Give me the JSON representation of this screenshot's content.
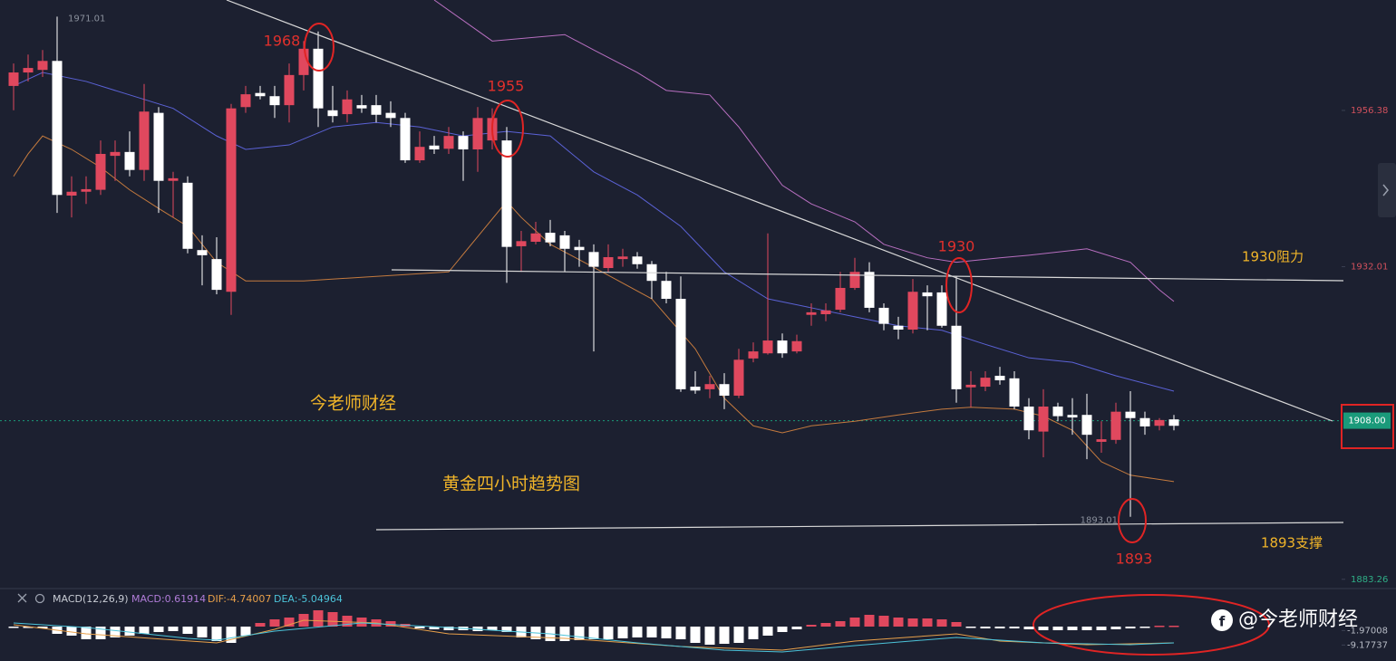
{
  "chart_data": {
    "type": "candlestick",
    "up_color": "#e0485e",
    "down_color": "#ffffff",
    "ylim": [
      1882.1,
      1973.6
    ],
    "yticks": [
      1956.38,
      1932.01,
      1883.26
    ],
    "ytick_colors": [
      "#d0505c",
      "#d0505c",
      "#2fae86"
    ],
    "last_price": {
      "value": 1908,
      "label": "1908.00"
    },
    "high_label": 1971.01,
    "low_label": 1893.01,
    "open": [
      1960.2,
      1962.3,
      1962.7,
      1964.1,
      1943.1,
      1943.7,
      1944.0,
      1949.3,
      1949.9,
      1947.1,
      1956.0,
      1945.4,
      1945.1,
      1934.6,
      1933.2,
      1928.1,
      1956.9,
      1959.1,
      1958.6,
      1957.2,
      1961.9,
      1966.0,
      1956.4,
      1955.8,
      1957.2,
      1957.2,
      1956.0,
      1955.2,
      1948.6,
      1950.9,
      1950.4,
      1952.4,
      1950.3,
      1951.7,
      1951.7,
      1935.2,
      1935.9,
      1937.3,
      1936.9,
      1935.1,
      1934.3,
      1931.8,
      1933.2,
      1933.6,
      1932.4,
      1929.8,
      1927.0,
      1913.3,
      1912.9,
      1913.7,
      1911.9,
      1917.7,
      1918.5,
      1920.5,
      1918.8,
      1924.5,
      1924.6,
      1925.3,
      1928.7,
      1931.2,
      1925.6,
      1922.8,
      1922.2,
      1928.0,
      1928.0,
      1922.8,
      1913.2,
      1913.3,
      1915.0,
      1914.6,
      1910.2,
      1906.3,
      1910.2,
      1908.9,
      1908.9,
      1904.7,
      1905.0,
      1909.4,
      1908.4,
      1907.2,
      1908.2
    ],
    "high": [
      1963.7,
      1965.1,
      1965.8,
      1971.01,
      1946.1,
      1946.1,
      1951.7,
      1951.7,
      1953.1,
      1960.5,
      1956.9,
      1946.8,
      1946.1,
      1936.9,
      1936.6,
      1957.4,
      1960.2,
      1960.2,
      1960.2,
      1963.7,
      1967.2,
      1968.7,
      1960.2,
      1959.5,
      1958.8,
      1958.8,
      1957.8,
      1956.0,
      1953.1,
      1952.4,
      1953.8,
      1953.1,
      1956.9,
      1956.7,
      1953.8,
      1937.6,
      1939.0,
      1939.3,
      1937.6,
      1936.2,
      1935.5,
      1935.5,
      1934.8,
      1934.3,
      1932.9,
      1931.2,
      1930.5,
      1915.7,
      1915.0,
      1915.4,
      1919.2,
      1920.2,
      1937.2,
      1921.6,
      1921.4,
      1926.3,
      1926.3,
      1931.2,
      1933.4,
      1932.7,
      1926.3,
      1924.2,
      1930.1,
      1929.1,
      1929.1,
      1930.5,
      1915.7,
      1915.7,
      1916.4,
      1915.7,
      1911.5,
      1912.9,
      1910.8,
      1911.5,
      1912.2,
      1907.9,
      1910.8,
      1912.6,
      1909.4,
      1908.4,
      1908.9
    ],
    "low": [
      1956.4,
      1960.9,
      1961.6,
      1940.4,
      1939.7,
      1941.8,
      1943.2,
      1945.4,
      1946.1,
      1945.4,
      1940.4,
      1939.7,
      1934.1,
      1929.1,
      1927.7,
      1924.5,
      1956.0,
      1958.1,
      1955.2,
      1954.5,
      1959.5,
      1953.8,
      1954.5,
      1954.5,
      1956.0,
      1954.5,
      1953.8,
      1948.2,
      1948.2,
      1949.6,
      1949.6,
      1945.4,
      1946.8,
      1950.3,
      1929.5,
      1931.2,
      1935.5,
      1935.2,
      1931.2,
      1932.0,
      1918.8,
      1931.2,
      1932.0,
      1931.7,
      1927.0,
      1926.3,
      1912.5,
      1912.2,
      1911.5,
      1909.8,
      1911.5,
      1917.1,
      1918.3,
      1917.8,
      1918.5,
      1922.8,
      1923.5,
      1924.9,
      1928.4,
      1924.9,
      1922.1,
      1920.7,
      1921.6,
      1922.1,
      1922.5,
      1910.8,
      1910.1,
      1912.6,
      1913.6,
      1909.8,
      1905.1,
      1902.3,
      1907.9,
      1905.8,
      1902.0,
      1903.0,
      1904.4,
      1893.01,
      1905.8,
      1906.5,
      1906.5
    ],
    "close": [
      1962.3,
      1963.0,
      1964.1,
      1943.2,
      1943.7,
      1944.1,
      1949.6,
      1949.9,
      1947.1,
      1956.2,
      1945.4,
      1945.8,
      1934.8,
      1933.8,
      1928.4,
      1956.7,
      1958.9,
      1958.6,
      1957.2,
      1961.9,
      1966.0,
      1956.7,
      1955.5,
      1958.1,
      1956.7,
      1955.7,
      1955.2,
      1948.6,
      1950.7,
      1950.3,
      1952.4,
      1950.3,
      1955.2,
      1955.2,
      1935.1,
      1936.0,
      1937.2,
      1935.8,
      1934.8,
      1934.6,
      1932.0,
      1933.5,
      1933.6,
      1932.4,
      1929.8,
      1927.0,
      1912.9,
      1912.7,
      1913.7,
      1911.9,
      1917.5,
      1918.8,
      1920.5,
      1918.5,
      1920.4,
      1924.9,
      1925.2,
      1928.7,
      1931.2,
      1925.6,
      1923.1,
      1922.2,
      1928.1,
      1927.4,
      1922.8,
      1912.9,
      1913.6,
      1914.7,
      1914.3,
      1910.2,
      1906.5,
      1910.2,
      1908.7,
      1908.5,
      1905.8,
      1905.1,
      1909.4,
      1908.4,
      1907.1,
      1908.1,
      1907.2
    ],
    "lines": [
      {
        "color": "#b86fc0",
        "x": [
          29,
          33,
          38,
          40,
          43,
          45,
          48,
          50,
          53,
          55,
          58,
          60,
          63,
          65,
          68,
          70,
          74,
          77,
          79,
          80
        ],
        "values": [
          1973.6,
          1967.2,
          1968.2,
          1965.8,
          1962.3,
          1959.5,
          1958.8,
          1953.8,
          1944.7,
          1941.8,
          1939.0,
          1935.5,
          1933.4,
          1932.7,
          1933.4,
          1933.8,
          1934.8,
          1932.7,
          1928.4,
          1926.6
        ]
      },
      {
        "color": "#5b62d6",
        "x": [
          0,
          2,
          5,
          8,
          11,
          14,
          16,
          19,
          22,
          25,
          28,
          31,
          34,
          37,
          40,
          43,
          46,
          49,
          52,
          55,
          58,
          61,
          64,
          67,
          70,
          73,
          76,
          80
        ],
        "values": [
          1960.2,
          1962.3,
          1960.9,
          1958.8,
          1956.7,
          1952.4,
          1950.3,
          1951.0,
          1953.8,
          1954.5,
          1953.8,
          1952.4,
          1953.1,
          1952.4,
          1946.8,
          1943.2,
          1938.3,
          1931.2,
          1927.0,
          1925.6,
          1924.2,
          1922.8,
          1922.1,
          1919.9,
          1917.8,
          1917.1,
          1915.0,
          1912.6
        ]
      },
      {
        "color": "#c47a3e",
        "x": [
          0,
          1,
          2,
          4,
          6,
          8,
          10,
          12,
          14,
          16,
          20,
          25,
          30,
          34,
          35,
          37,
          40,
          44,
          47,
          49,
          51,
          53,
          55,
          58,
          61,
          64,
          66,
          69,
          71,
          73,
          75,
          77,
          80
        ],
        "values": [
          1946.1,
          1949.6,
          1952.4,
          1950.3,
          1947.5,
          1944.0,
          1941.1,
          1938.3,
          1932.7,
          1929.8,
          1929.8,
          1930.5,
          1931.2,
          1942.2,
          1939.7,
          1935.5,
          1931.9,
          1927.0,
          1919.2,
          1911.5,
          1907.2,
          1906.1,
          1907.2,
          1907.9,
          1908.9,
          1909.8,
          1910.1,
          1909.8,
          1908.7,
          1906.5,
          1901.6,
          1899.5,
          1898.5
        ]
      }
    ],
    "annotations": [
      1968,
      1955,
      1930,
      1893
    ],
    "level_labels": [
      "1930阻力",
      "1893支撑"
    ],
    "text_labels": [
      "今老师财经",
      "黄金四小时趋势图"
    ],
    "watermark": "@今老师财经",
    "macd": {
      "title": "MACD(12,26,9)",
      "labels": [
        "MACD:0.61914",
        "DIF:-4.74007",
        "DEA:-5.04964"
      ],
      "label_colors": [
        "#b07cd8",
        "#e8a04a",
        "#4cc3d9"
      ],
      "ylim": [
        -17.1,
        18
      ],
      "yticks": [
        -1.97008,
        -9.17737
      ],
      "up_color": "#e0485e",
      "down_color": "#ffffff",
      "histogram": [
        -0.45,
        -0.45,
        -0.9,
        -3.6,
        -4.5,
        -6.3,
        -6.3,
        -5.4,
        -4.5,
        -3.6,
        -2.7,
        -2.25,
        -3.6,
        -5.4,
        -7.2,
        -8.1,
        -4.5,
        1.8,
        3.6,
        4.5,
        6.3,
        8.1,
        7.2,
        5.4,
        4.5,
        3.6,
        2.7,
        1.35,
        -0.9,
        -1.35,
        -1.8,
        -1.8,
        -2.25,
        -1.8,
        -2.7,
        -5.4,
        -6.3,
        -7.2,
        -7.2,
        -6.75,
        -6.3,
        -6.3,
        -5.85,
        -5.4,
        -5.4,
        -5.85,
        -6.3,
        -8.1,
        -9.0,
        -8.55,
        -8.1,
        -6.3,
        -4.5,
        -2.7,
        -1.35,
        0.9,
        1.8,
        2.7,
        4.5,
        5.85,
        5.4,
        4.5,
        4.05,
        4.05,
        3.6,
        2.25,
        -0.45,
        -0.9,
        -0.9,
        -0.9,
        -1.35,
        -1.8,
        -1.8,
        -1.8,
        -1.8,
        -1.8,
        -1.35,
        -0.9,
        -0.45,
        0.45,
        0.45
      ],
      "dif": {
        "color": "#e8a04a",
        "x": [
          0,
          5,
          14,
          18,
          20,
          25,
          30,
          38,
          46,
          53,
          58,
          65,
          68,
          74,
          80
        ],
        "values": [
          0.9,
          -3.6,
          -8.1,
          -1.35,
          3.15,
          1.8,
          -3.6,
          -5.85,
          -9.9,
          -11.7,
          -7.2,
          -3.6,
          -7.2,
          -9.0,
          -8.1
        ]
      },
      "dea": {
        "color": "#4cc3d9",
        "x": [
          0,
          5,
          12,
          14,
          18,
          24,
          30,
          37,
          43,
          49,
          53,
          58,
          65,
          71,
          77,
          80
        ],
        "values": [
          1.8,
          -0.45,
          -5.85,
          -6.75,
          -2.25,
          1.8,
          -0.45,
          -3.6,
          -8.1,
          -11.7,
          -12.6,
          -9.45,
          -5.4,
          -8.1,
          -9.0,
          -8.1
        ]
      }
    }
  }
}
